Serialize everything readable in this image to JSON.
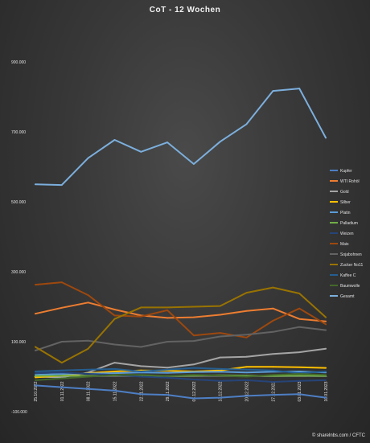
{
  "chart_data": {
    "type": "line",
    "title": "CoT - 12 Wochen",
    "xlabel": "",
    "ylabel": "",
    "ylim": [
      -100000,
      1000000
    ],
    "y_ticks": [
      -100000,
      100000,
      300000,
      500000,
      700000,
      900000
    ],
    "y_tick_labels": [
      "-100.000",
      "100.000",
      "300.000",
      "500.000",
      "700.000",
      "900.000"
    ],
    "categories": [
      "25.10.2022",
      "01.11.2022",
      "08.11.2022",
      "15.11.2022",
      "22.11.2022",
      "29.11.2022",
      "06.12.2022",
      "13.12.2022",
      "20.12.2022",
      "27.12.2022",
      "03.01.2023",
      "10.01.2023"
    ],
    "grid": false,
    "legend_position": "right",
    "series": [
      {
        "name": "Kupfer",
        "color": "#4e7fc4",
        "values": [
          -25000,
          -30000,
          -35000,
          -40000,
          -50000,
          -52000,
          -62000,
          -60000,
          -55000,
          -52000,
          -50000,
          -60000
        ]
      },
      {
        "name": "WTI Rohöl",
        "color": "#ed7d31",
        "values": [
          180000,
          197000,
          212000,
          192000,
          175000,
          168000,
          170000,
          177000,
          188000,
          195000,
          165000,
          158000
        ]
      },
      {
        "name": "Gold",
        "color": "#a5a5a5",
        "values": [
          0,
          -2000,
          12000,
          40000,
          30000,
          26000,
          35000,
          55000,
          57000,
          65000,
          70000,
          80000
        ]
      },
      {
        "name": "Silber",
        "color": "#ffc000",
        "values": [
          -2000,
          3000,
          10000,
          15000,
          18000,
          17000,
          15000,
          18000,
          28000,
          28000,
          27000,
          25000
        ]
      },
      {
        "name": "Platin",
        "color": "#5b9bd5",
        "values": [
          5000,
          8000,
          9000,
          10000,
          12000,
          11000,
          13000,
          14000,
          12000,
          14000,
          15000,
          12000
        ]
      },
      {
        "name": "Palladium",
        "color": "#70ad47",
        "values": [
          2000,
          3000,
          2000,
          4000,
          3000,
          2000,
          3000,
          4000,
          3000,
          2000,
          3000,
          2000
        ]
      },
      {
        "name": "Weizen",
        "color": "#264478",
        "values": [
          10000,
          12000,
          8000,
          5000,
          0,
          -3000,
          -8000,
          -12000,
          -10000,
          -15000,
          -12000,
          -10000
        ]
      },
      {
        "name": "Mais",
        "color": "#9e480e",
        "values": [
          263000,
          270000,
          233000,
          175000,
          172000,
          190000,
          118000,
          125000,
          112000,
          160000,
          195000,
          150000
        ]
      },
      {
        "name": "Sojabohnen",
        "color": "#636363",
        "values": [
          75000,
          100000,
          103000,
          92000,
          85000,
          100000,
          102000,
          115000,
          120000,
          128000,
          142000,
          133000
        ]
      },
      {
        "name": "Zucker No11",
        "color": "#997300",
        "values": [
          85000,
          40000,
          80000,
          165000,
          198000,
          198000,
          200000,
          202000,
          240000,
          255000,
          238000,
          170000
        ]
      },
      {
        "name": "Kaffee C",
        "color": "#255e91",
        "values": [
          15000,
          18000,
          20000,
          22000,
          15000,
          20000,
          25000,
          22000,
          20000,
          18000,
          10000,
          15000
        ]
      },
      {
        "name": "Baumwolle",
        "color": "#43682b",
        "values": [
          -10000,
          -5000,
          0,
          5000,
          5000,
          2000,
          5000,
          3000,
          0,
          5000,
          8000,
          5000
        ]
      },
      {
        "name": "Gesamt",
        "color": "#7cafdd",
        "values": [
          550000,
          548000,
          625000,
          677000,
          643000,
          670000,
          608000,
          672000,
          722000,
          817000,
          824000,
          683000
        ]
      }
    ]
  },
  "footer": {
    "credit": "© sharelnbs.com / CFTC"
  }
}
